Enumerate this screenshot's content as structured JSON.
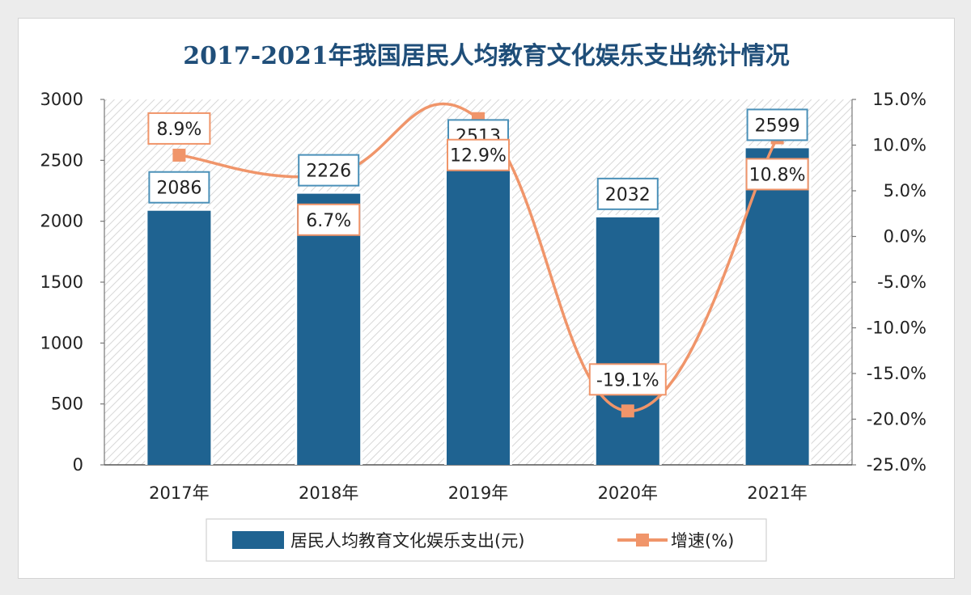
{
  "chart_data": {
    "type": "bar",
    "title": "2017-2021年我国居民人均教育文化娱乐支出统计情况",
    "categories": [
      "2017年",
      "2018年",
      "2019年",
      "2020年",
      "2021年"
    ],
    "series": [
      {
        "name": "居民人均教育文化娱乐支出(元)",
        "kind": "bar",
        "axis": "left",
        "values": [
          2086,
          2226,
          2513,
          2032,
          2599
        ],
        "labels": [
          "2086",
          "2226",
          "2513",
          "2032",
          "2599"
        ],
        "color": "#1f6391"
      },
      {
        "name": "增速(%)",
        "kind": "line",
        "axis": "right",
        "values": [
          8.9,
          6.7,
          12.9,
          -19.1,
          10.8
        ],
        "labels": [
          "8.9%",
          "6.7%",
          "12.9%",
          "-19.1%",
          "10.8%"
        ],
        "color": "#f0956a"
      }
    ],
    "y_left": {
      "range": [
        0,
        3000
      ],
      "ticks": [
        0,
        500,
        1000,
        1500,
        2000,
        2500,
        3000
      ],
      "tick_labels": [
        "0",
        "500",
        "1000",
        "1500",
        "2000",
        "2500",
        "3000"
      ]
    },
    "y_right": {
      "range": [
        -25,
        15
      ],
      "ticks": [
        -25,
        -20,
        -15,
        -10,
        -5,
        0,
        5,
        10,
        15
      ],
      "tick_labels": [
        "-25.0%",
        "-20.0%",
        "-15.0%",
        "-10.0%",
        "-5.0%",
        "0.0%",
        "5.0%",
        "10.0%",
        "15.0%"
      ]
    },
    "legend_position": "bottom",
    "grid": false,
    "background": "diagonal-hatch"
  }
}
